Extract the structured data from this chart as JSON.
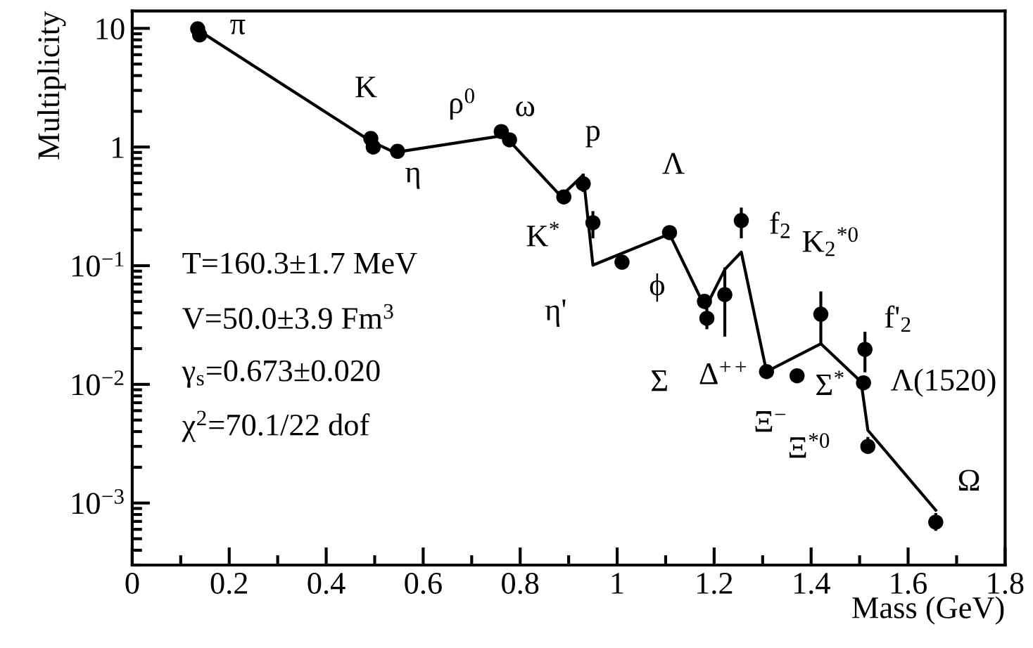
{
  "chart_data": {
    "type": "scatter",
    "xlabel": "Mass (GeV)",
    "ylabel": "Multiplicity",
    "log": "y",
    "grid": false,
    "legend": false,
    "xlim": [
      0,
      1.8
    ],
    "ylim": [
      0.0003,
      14
    ],
    "xticks": [
      0,
      0.2,
      0.4,
      0.6,
      0.8,
      1,
      1.2,
      1.4,
      1.6,
      1.8
    ],
    "yticks": [
      {
        "value": 0.001,
        "label": "10$^{−3}$"
      },
      {
        "value": 0.01,
        "label": "10$^{−2}$"
      },
      {
        "value": 0.1,
        "label": "10$^{−1}$"
      },
      1,
      10
    ],
    "series": [
      {
        "type": "line",
        "color": "#000000",
        "marker": "none",
        "line_style": "solid",
        "x": [
          0.137,
          0.492,
          0.541,
          0.761,
          0.781,
          0.884,
          0.93,
          0.95,
          1.108,
          1.182,
          1.222,
          1.256,
          1.308,
          1.42,
          1.503,
          1.517,
          1.657
        ],
        "values": [
          9.6,
          1.12,
          0.9,
          1.24,
          1.09,
          0.385,
          0.58,
          0.101,
          0.185,
          0.044,
          0.093,
          0.13,
          0.0128,
          0.022,
          0.0105,
          0.0041,
          0.00087
        ]
      },
      {
        "color": "#000000",
        "marker": "circle",
        "x": [
          0.135,
          0.139,
          0.492,
          0.497,
          0.547,
          0.761,
          0.778,
          0.884,
          0.89,
          0.93,
          0.95,
          1.01,
          1.108,
          1.18,
          1.185,
          1.222,
          1.256,
          1.308,
          1.371,
          1.42,
          1.511,
          1.508,
          1.517,
          1.657
        ],
        "values": [
          9.9,
          8.8,
          1.18,
          1.0,
          0.92,
          1.35,
          1.15,
          null,
          0.38,
          0.49,
          0.23,
          0.107,
          0.19,
          0.05,
          0.036,
          0.057,
          0.24,
          0.0128,
          0.0118,
          0.039,
          0.0197,
          0.0103,
          0.003,
          0.00069
        ],
        "errors": [
          null,
          null,
          null,
          null,
          null,
          null,
          null,
          null,
          null,
          [
            0.43,
            0.58
          ],
          [
            0.175,
            0.28
          ],
          null,
          null,
          null,
          [
            0.03,
            0.043
          ],
          [
            0.026,
            0.094
          ],
          [
            0.175,
            0.3
          ],
          null,
          null,
          [
            0.022,
            0.059
          ],
          [
            0.013,
            0.027
          ],
          null,
          [
            0.0027,
            0.0035
          ],
          [
            0.0006,
            0.0008
          ]
        ]
      }
    ],
    "annotations": [
      {
        "text": "π",
        "x": 0.137,
        "y": 9.6
      },
      {
        "text": "K",
        "x": 0.494,
        "y": 1.18
      },
      {
        "text": "η",
        "x": 0.547,
        "y": 0.92
      },
      {
        "text": "ρ$^{0}$",
        "x": 0.761,
        "y": 1.35
      },
      {
        "text": "ω",
        "x": 0.778,
        "y": 1.15
      },
      {
        "text": "K$^{*}$",
        "x": 0.884,
        "y": 0.36
      },
      {
        "text": "p",
        "x": 0.93,
        "y": 0.49
      },
      {
        "text": "η'",
        "x": 0.95,
        "y": 0.23
      },
      {
        "text": "ϕ",
        "x": 1.01,
        "y": 0.107
      },
      {
        "text": "Λ",
        "x": 1.108,
        "y": 0.19
      },
      {
        "text": "Σ",
        "x": 1.18,
        "y": 0.05
      },
      {
        "text": "Δ$^{++}$",
        "x": 1.222,
        "y": 0.057
      },
      {
        "text": "f$_{2}$",
        "x": 1.256,
        "y": 0.24
      },
      {
        "text": "Ξ$^{−}$",
        "x": 1.308,
        "y": 0.0128
      },
      {
        "text": "Σ$^{*}$",
        "x": 1.371,
        "y": 0.0118
      },
      {
        "text": "K$_{2}$$^{*0}$",
        "x": 1.42,
        "y": 0.039
      },
      {
        "text": "f'$_{2}$",
        "x": 1.511,
        "y": 0.0197
      },
      {
        "text": "Λ(1520)",
        "x": 1.508,
        "y": 0.0103
      },
      {
        "text": "Ξ$^{*0}$",
        "x": 1.517,
        "y": 0.003
      },
      {
        "text": "Ω",
        "x": 1.657,
        "y": 0.00069
      },
      "T=160.3±1.7 MeV",
      "V=50.0±3.9 Fm$^{3}$",
      "γ$_{s}$=0.673±0.020",
      "χ$^{2}$=70.1/22 dof"
    ]
  }
}
